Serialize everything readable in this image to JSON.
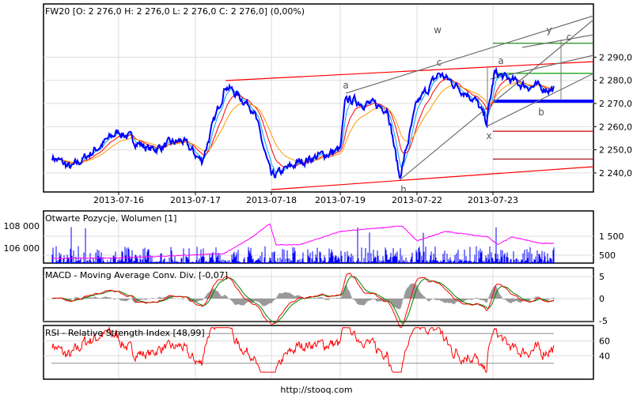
{
  "chart_data": [
    {
      "type": "line",
      "title": "FW20 [O: 2 276,0  H: 2 276,0  L: 2 276,0  C: 2 276,0] (0,00%)",
      "y_ticks": [
        "2 240,0",
        "2 250,0",
        "2 260,0",
        "2 270,0",
        "2 280,0",
        "2 290,0"
      ],
      "y_tick_values": [
        2240,
        2250,
        2260,
        2270,
        2280,
        2290
      ],
      "x_ticks": [
        "2013-07-16",
        "2013-07-17",
        "2013-07-18",
        "2013-07-19",
        "2013-07-22",
        "2013-07-23"
      ],
      "ylim": [
        2233,
        2301
      ],
      "grid": true,
      "price_path": [
        [
          "2013-07-15 10:00",
          2247
        ],
        [
          "2013-07-15 12:00",
          2242
        ],
        [
          "2013-07-15 14:30",
          2250
        ],
        [
          "2013-07-16 09:00",
          2258
        ],
        [
          "2013-07-16 12:20",
          2250
        ],
        [
          "2013-07-16 15:40",
          2254
        ],
        [
          "2013-07-17 09:40",
          2245
        ],
        [
          "2013-07-17 12:10",
          2278
        ],
        [
          "2013-07-17 15:05",
          2268
        ],
        [
          "2013-07-18 09:00",
          2238
        ],
        [
          "2013-07-18 12:05",
          2245
        ],
        [
          "2013-07-19 09:00",
          2250
        ],
        [
          "2013-07-19 09:35",
          2272
        ],
        [
          "2013-07-19 14:00",
          2268
        ],
        [
          "2013-07-19 15:15",
          2238
        ],
        [
          "2013-07-22 09:00",
          2270
        ],
        [
          "2013-07-22 11:20",
          2283
        ],
        [
          "2013-07-22 15:05",
          2272
        ],
        [
          "2013-07-22 16:20",
          2262
        ],
        [
          "2013-07-23 09:10",
          2283
        ],
        [
          "2013-07-23 12:05",
          2278
        ],
        [
          "2013-07-23 15:25",
          2276
        ]
      ],
      "horizontal_levels": [
        {
          "value": 2296,
          "color": "#008000"
        },
        {
          "value": 2283,
          "color": "#00a000"
        },
        {
          "value": 2271,
          "color": "#0000ff"
        },
        {
          "value": 2258,
          "color": "#cc0000"
        },
        {
          "value": 2246,
          "color": "#990000"
        }
      ],
      "wave_labels": [
        "a",
        "w",
        "c",
        "h",
        "x",
        "a",
        "b",
        "y",
        "c"
      ],
      "colors": {
        "price": "#0000ff",
        "ma_fast": "#00a0ff",
        "ma_mid": "#ff0000",
        "ma_slow": "#ff9900",
        "trend_red": "#ff0000",
        "trend_grey": "#707070"
      }
    },
    {
      "type": "bar",
      "title": "Otwarte Pozycje, Wolumen [1]",
      "left_ticks": [
        "108 000",
        "106 000"
      ],
      "left_tick_values": [
        108000,
        106000
      ],
      "right_ticks": [
        "1 500",
        "500"
      ],
      "right_tick_values": [
        1500,
        500
      ],
      "open_interest_path": [
        [
          "2013-07-15 10:00",
          105070
        ],
        [
          "2013-07-16 09:00",
          105100
        ],
        [
          "2013-07-17 12:00",
          105500
        ],
        [
          "2013-07-17 15:00",
          107000
        ],
        [
          "2013-07-18 08:50",
          108200
        ],
        [
          "2013-07-18 09:30",
          106300
        ],
        [
          "2013-07-18 12:00",
          106300
        ],
        [
          "2013-07-19 09:00",
          107500
        ],
        [
          "2013-07-19 15:30",
          108000
        ],
        [
          "2013-07-22 09:00",
          106650
        ],
        [
          "2013-07-22 12:00",
          107500
        ],
        [
          "2013-07-22 16:30",
          107000
        ],
        [
          "2013-07-23 09:30",
          106300
        ],
        [
          "2013-07-23 11:00",
          107000
        ],
        [
          "2013-07-23 14:00",
          106430
        ],
        [
          "2013-07-23 16:30",
          106430
        ]
      ],
      "colors": {
        "volume": "#0000ff",
        "open_interest": "#ff00ff"
      }
    },
    {
      "type": "line",
      "title": "MACD - Moving Average Conv. Div. [-0,07]",
      "right_ticks": [
        "5",
        "0",
        "-5"
      ],
      "right_tick_values": [
        5,
        0,
        -5
      ],
      "colors": {
        "macd": "#ff0000",
        "signal": "#008000",
        "histogram": "#999999"
      }
    },
    {
      "type": "line",
      "title": "RSI - Relative Strength Index [48,99]",
      "right_ticks": [
        "60",
        "40"
      ],
      "right_tick_values": [
        60,
        40
      ],
      "bands": [
        30,
        70
      ],
      "colors": {
        "rsi": "#ff0000",
        "bands": "#999999"
      }
    }
  ],
  "footer": {
    "url": "http://stooq.com"
  }
}
